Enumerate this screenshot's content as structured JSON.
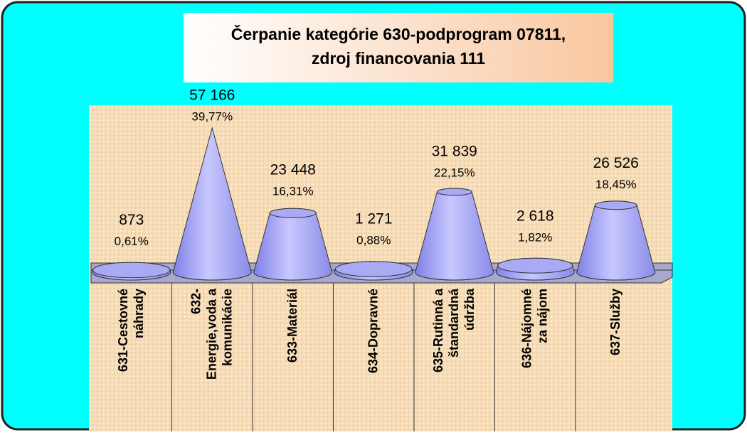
{
  "chart_data": {
    "type": "cone",
    "title": "Čerpanie kategórie 630-podprogram 07811,\nzdroj financovania 111",
    "categories": [
      "631-Cestovné\nnáhrady",
      "632-\nEnergie,voda a\nkomunikácie",
      "633-Materiál",
      "634-Dopravné",
      "635-Rutinná a\nštandardná\núdržba",
      "636-Nájomné\nza nájom",
      "637-Služby"
    ],
    "values": [
      873,
      57166,
      23448,
      1271,
      31839,
      2618,
      26526
    ],
    "value_labels": [
      "873",
      "57 166",
      "23 448",
      "1 271",
      "31 839",
      "2 618",
      "26 526"
    ],
    "shares": [
      0.61,
      39.77,
      16.31,
      0.88,
      22.15,
      1.82,
      18.45
    ],
    "share_labels": [
      "0,61%",
      "39,77%",
      "16,31%",
      "0,88%",
      "22,15%",
      "1,82%",
      "18,45%"
    ],
    "color": "#9a9af0"
  }
}
